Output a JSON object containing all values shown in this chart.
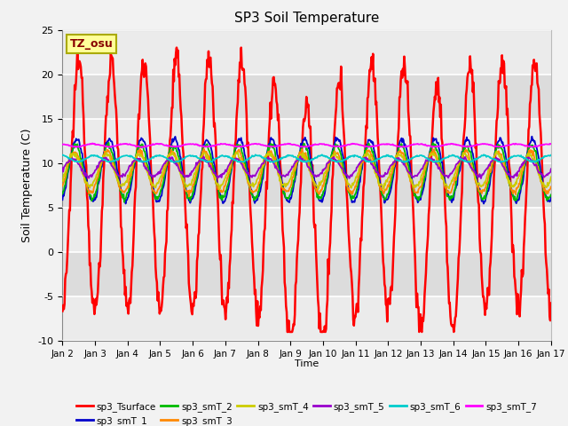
{
  "title": "SP3 Soil Temperature",
  "ylabel": "Soil Temperature (C)",
  "xlabel": "Time",
  "ylim": [
    -10,
    25
  ],
  "xlim": [
    0,
    15
  ],
  "xtick_labels": [
    "Jan 2",
    "Jan 3",
    "Jan 4",
    "Jan 5",
    "Jan 6",
    "Jan 7",
    "Jan 8",
    "Jan 9",
    "Jan 10",
    "Jan 11",
    "Jan 12",
    "Jan 13",
    "Jan 14",
    "Jan 15",
    "Jan 16",
    "Jan 17"
  ],
  "xtick_positions": [
    0,
    1,
    2,
    3,
    4,
    5,
    6,
    7,
    8,
    9,
    10,
    11,
    12,
    13,
    14,
    15
  ],
  "ytick_positions": [
    -10,
    -5,
    0,
    5,
    10,
    15,
    20,
    25
  ],
  "fig_bg_color": "#F2F2F2",
  "plot_bg_color": "#E8E8E8",
  "legend_entries": [
    "sp3_Tsurface",
    "sp3_smT_1",
    "sp3_smT_2",
    "sp3_smT_3",
    "sp3_smT_4",
    "sp3_smT_5",
    "sp3_smT_6",
    "sp3_smT_7"
  ],
  "line_colors": [
    "#FF0000",
    "#0000CC",
    "#00BB00",
    "#FF8800",
    "#CCCC00",
    "#9900CC",
    "#00CCCC",
    "#FF00FF"
  ],
  "annotation_text": "TZ_osu",
  "annotation_color": "#880000",
  "annotation_bg": "#FFFF99",
  "annotation_border": "#AAAA00",
  "n_points": 720,
  "days": 15
}
